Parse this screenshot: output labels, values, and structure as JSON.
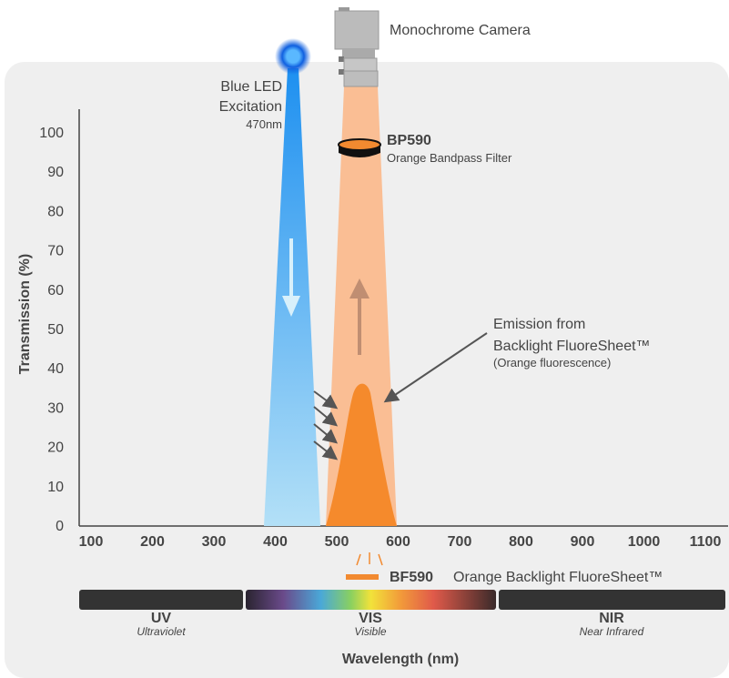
{
  "camera_label": "Monochrome Camera",
  "led": {
    "line1": "Blue LED",
    "line2": "Excitation",
    "wavelength": "470nm"
  },
  "filter": {
    "code": "BP590",
    "description": "Orange Bandpass Filter"
  },
  "emission": {
    "line1": "Emission from",
    "line2": "Backlight FluoreSheet™",
    "note": "(Orange fluorescence)"
  },
  "sheet": {
    "code": "BF590",
    "description": "Orange Backlight FluoreSheet™"
  },
  "axes": {
    "y_label": "Transmission (%)",
    "x_label": "Wavelength (nm)",
    "yticks": [
      0,
      10,
      20,
      30,
      40,
      50,
      60,
      70,
      80,
      90,
      100
    ],
    "xticks": [
      100,
      200,
      300,
      400,
      500,
      600,
      700,
      800,
      900,
      1000,
      1100
    ]
  },
  "bands": [
    {
      "name": "UV",
      "description": "Ultraviolet"
    },
    {
      "name": "VIS",
      "description": "Visible"
    },
    {
      "name": "NIR",
      "description": "Near Infrared"
    }
  ]
}
